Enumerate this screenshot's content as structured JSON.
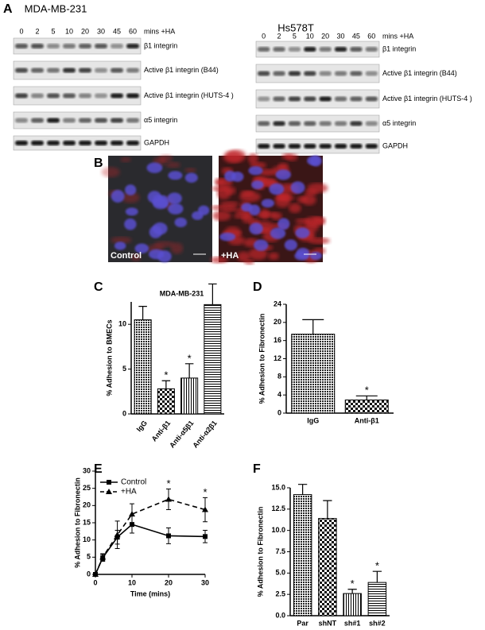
{
  "panel_a": {
    "label": "A",
    "blots": [
      {
        "title": "MDA-MB-231",
        "lanes": [
          "0",
          "2",
          "5",
          "10",
          "20",
          "30",
          "45",
          "60"
        ],
        "lane_unit": "mins +HA",
        "rows": [
          "β1 integrin",
          "Active β1 integrin (B44)",
          "Active β1 integrin (HUTS-4 )",
          "α5 integrin",
          "GAPDH"
        ]
      },
      {
        "title": "Hs578T",
        "lanes": [
          "0",
          "2",
          "5",
          "10",
          "20",
          "30",
          "45",
          "60"
        ],
        "lane_unit": "mins +HA",
        "rows": [
          "β1 integrin",
          "Active β1 integrin (B44)",
          "Active β1 integrin (HUTS-4 )",
          "α5 integrin",
          "GAPDH"
        ]
      }
    ]
  },
  "panel_b": {
    "label": "B",
    "images": [
      "Control",
      "+HA"
    ]
  },
  "chart_data": [
    {
      "label": "C",
      "type": "bar",
      "title": "MDA-MB-231",
      "ylabel": "% Adhesion to BMECs",
      "categories": [
        "IgG",
        "Anti-β1",
        "Anti-α5β1",
        "Anti-α2β1"
      ],
      "values": [
        10.5,
        2.8,
        4.0,
        12.2
      ],
      "errors": [
        1.5,
        0.9,
        1.6,
        2.3
      ],
      "ylim": [
        0,
        12.5
      ],
      "yticks": [
        0,
        5,
        10
      ],
      "rotate_labels": true,
      "annotations": [
        {
          "category": "Anti-β1",
          "text": "*"
        },
        {
          "category": "Anti-α5β1",
          "text": "*"
        }
      ]
    },
    {
      "label": "D",
      "type": "bar",
      "ylabel": "% Adhesion to Fibronectin",
      "categories": [
        "IgG",
        "Anti-β1"
      ],
      "values": [
        17.4,
        2.9
      ],
      "errors": [
        3.2,
        0.9
      ],
      "ylim": [
        0,
        24
      ],
      "yticks": [
        0,
        4,
        8,
        12,
        16,
        20,
        24
      ],
      "rotate_labels": false,
      "annotations": [
        {
          "category": "Anti-β1",
          "text": "*"
        }
      ]
    },
    {
      "label": "E",
      "type": "line",
      "xlabel": "Time (mins)",
      "ylabel": "% Adhesion to Fibronectin",
      "x": [
        0,
        2,
        6,
        10,
        20,
        30
      ],
      "series": [
        {
          "name": "Control",
          "color": "#000000",
          "marker": "square",
          "dashed": false,
          "values": [
            0,
            4.8,
            10.8,
            14.5,
            11.2,
            11.0
          ],
          "errors": [
            0.5,
            1.0,
            2.0,
            2.5,
            2.3,
            1.8
          ]
        },
        {
          "name": "+HA",
          "color": "#000000",
          "marker": "triangle",
          "dashed": true,
          "values": [
            0,
            5.0,
            11.5,
            17.5,
            21.8,
            18.8
          ],
          "errors": [
            0.5,
            1.0,
            4.0,
            3.0,
            3.0,
            3.5
          ]
        }
      ],
      "xlim": [
        0,
        30
      ],
      "xticks": [
        0,
        10,
        20,
        30
      ],
      "ylim": [
        0,
        30
      ],
      "yticks": [
        0,
        5,
        10,
        15,
        20,
        25,
        30
      ],
      "annotations": [
        {
          "x": 20,
          "text": "*"
        },
        {
          "x": 30,
          "text": "*"
        }
      ]
    },
    {
      "label": "F",
      "type": "bar",
      "ylabel": "% Adhesion to Fibronectin",
      "categories": [
        "Par",
        "shNT",
        "sh#1",
        "sh#2"
      ],
      "values": [
        14.2,
        11.4,
        2.6,
        3.9
      ],
      "errors": [
        1.2,
        2.1,
        0.5,
        1.3
      ],
      "ylim": [
        0,
        15
      ],
      "yticks": [
        {
          "value": 0,
          "label": "0.0"
        },
        {
          "value": 2.5,
          "label": "2.5"
        },
        {
          "value": 5,
          "label": "5.0"
        },
        {
          "value": 7.5,
          "label": "7.5"
        },
        {
          "value": 10,
          "label": "10.0"
        },
        {
          "value": 12.5,
          "label": "12.5"
        },
        {
          "value": 15,
          "label": "15.0"
        }
      ],
      "rotate_labels": false,
      "annotations": [
        {
          "category": "sh#1",
          "text": "*"
        },
        {
          "category": "sh#2",
          "text": "*"
        }
      ]
    }
  ]
}
